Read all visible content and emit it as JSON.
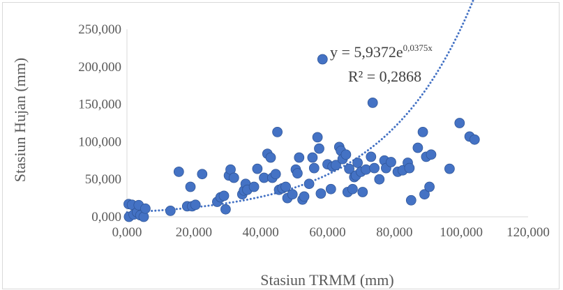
{
  "chart_data": {
    "type": "scatter",
    "title": "",
    "xlabel": "Stasiun TRMM (mm)",
    "ylabel": "Stasiun Hujan (mm)",
    "xlim": [
      0,
      120000
    ],
    "ylim": [
      0,
      250000
    ],
    "xticks": [
      "0,000",
      "20,000",
      "40,000",
      "60,000",
      "80,000",
      "100,000",
      "120,000"
    ],
    "yticks": [
      "0,000",
      "50,000",
      "100,000",
      "150,000",
      "200,000",
      "250,000"
    ],
    "grid": false,
    "legend": "none",
    "point_color": "#4472c4",
    "trendline": {
      "type": "exponential",
      "a": 5.9372,
      "b": 0.0375,
      "style": "dotted",
      "color": "#4472c4",
      "equation_label": "y = 5,9372e",
      "equation_exponent": "0,0375x",
      "r2_label": "R² = 0,2868"
    },
    "series": [
      {
        "points": [
          [
            500,
            17000
          ],
          [
            600,
            0
          ],
          [
            1500,
            16000
          ],
          [
            2000,
            3000
          ],
          [
            3000,
            6000
          ],
          [
            3500,
            15500
          ],
          [
            4000,
            2000
          ],
          [
            5000,
            0
          ],
          [
            5500,
            11000
          ],
          [
            13000,
            8000
          ],
          [
            15500,
            60000
          ],
          [
            18000,
            14000
          ],
          [
            19000,
            40000
          ],
          [
            19500,
            14000
          ],
          [
            20500,
            16000
          ],
          [
            22500,
            57000
          ],
          [
            27000,
            20000
          ],
          [
            28000,
            26000
          ],
          [
            29000,
            28000
          ],
          [
            29500,
            10000
          ],
          [
            30500,
            55000
          ],
          [
            31000,
            63000
          ],
          [
            32000,
            52000
          ],
          [
            34500,
            30000
          ],
          [
            35000,
            35000
          ],
          [
            35500,
            44000
          ],
          [
            36000,
            36000
          ],
          [
            38000,
            40000
          ],
          [
            39000,
            64000
          ],
          [
            41000,
            52000
          ],
          [
            42000,
            84000
          ],
          [
            43000,
            79000
          ],
          [
            43500,
            52000
          ],
          [
            44500,
            57000
          ],
          [
            45000,
            113000
          ],
          [
            45500,
            36000
          ],
          [
            46500,
            38000
          ],
          [
            47500,
            40000
          ],
          [
            48000,
            25000
          ],
          [
            49500,
            30000
          ],
          [
            50500,
            63000
          ],
          [
            51000,
            58000
          ],
          [
            51500,
            79000
          ],
          [
            52500,
            23000
          ],
          [
            53000,
            27000
          ],
          [
            54500,
            44000
          ],
          [
            55500,
            79000
          ],
          [
            56000,
            65000
          ],
          [
            57000,
            106000
          ],
          [
            57500,
            91000
          ],
          [
            58000,
            31000
          ],
          [
            58500,
            210000
          ],
          [
            60000,
            70000
          ],
          [
            61000,
            37000
          ],
          [
            61500,
            67000
          ],
          [
            62500,
            69000
          ],
          [
            63500,
            93000
          ],
          [
            64000,
            88000
          ],
          [
            64500,
            77000
          ],
          [
            65500,
            83000
          ],
          [
            66000,
            33000
          ],
          [
            66500,
            64000
          ],
          [
            67500,
            37000
          ],
          [
            68000,
            53000
          ],
          [
            68500,
            55000
          ],
          [
            69000,
            72000
          ],
          [
            70000,
            60000
          ],
          [
            70500,
            33000
          ],
          [
            71500,
            63000
          ],
          [
            73000,
            80000
          ],
          [
            73500,
            152000
          ],
          [
            74000,
            65000
          ],
          [
            75500,
            50000
          ],
          [
            77000,
            75000
          ],
          [
            77500,
            65000
          ],
          [
            79000,
            73000
          ],
          [
            81000,
            60000
          ],
          [
            82500,
            62000
          ],
          [
            84000,
            72000
          ],
          [
            84500,
            65000
          ],
          [
            85000,
            22000
          ],
          [
            87000,
            92000
          ],
          [
            88500,
            113000
          ],
          [
            89000,
            30000
          ],
          [
            89500,
            80000
          ],
          [
            90500,
            40000
          ],
          [
            91000,
            83000
          ],
          [
            96500,
            64000
          ],
          [
            99500,
            125000
          ],
          [
            102500,
            107000
          ],
          [
            104000,
            103000
          ]
        ]
      }
    ]
  }
}
